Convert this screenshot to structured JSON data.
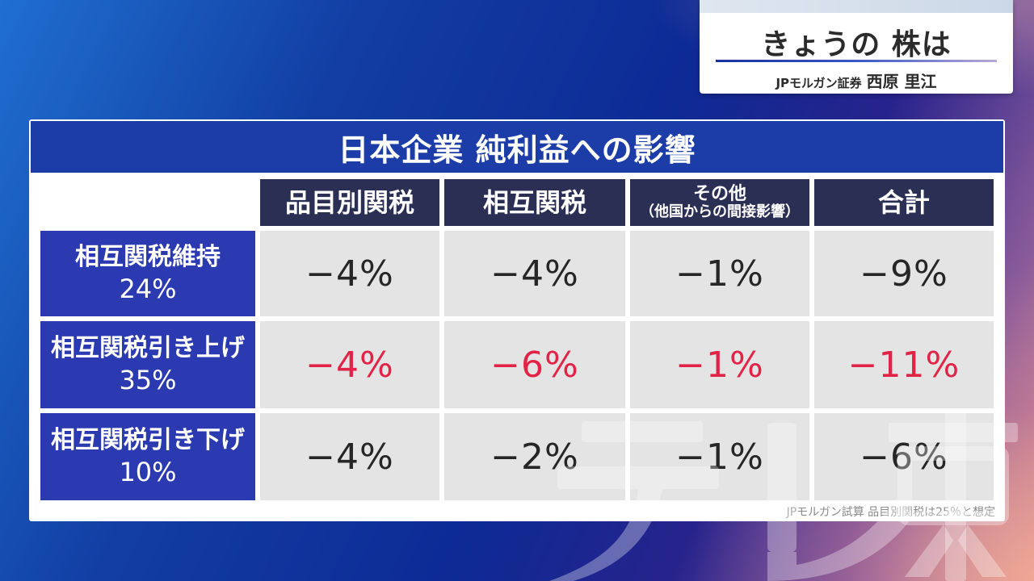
{
  "caption": {
    "title": "きょうの 株は",
    "firm": "JPモルガン証券",
    "person": "西原 里江"
  },
  "table": {
    "title": "日本企業 純利益への影響",
    "columns": [
      {
        "label": "品目別関税"
      },
      {
        "label": "相互関税"
      },
      {
        "label": "その他",
        "sublabel": "（他国からの間接影響）"
      },
      {
        "label": "合計"
      }
    ],
    "rows": [
      {
        "label": "相互関税維持",
        "rate": "24%",
        "values": [
          "−4%",
          "−4%",
          "−1%",
          "−9%"
        ],
        "highlight": false
      },
      {
        "label": "相互関税引き上げ",
        "rate": "35%",
        "values": [
          "−4%",
          "−6%",
          "−1%",
          "−11%"
        ],
        "highlight": true
      },
      {
        "label": "相互関税引き下げ",
        "rate": "10%",
        "values": [
          "−4%",
          "−2%",
          "−1%",
          "−6%"
        ],
        "highlight": false
      }
    ],
    "footnote": "JPモルガン試算  品目別関税は25％と想定"
  },
  "colors": {
    "title_bar": "#1c3da8",
    "column_header": "#2b2f54",
    "row_header": "#2b3ab0",
    "cell_bg": "#e4e4e4",
    "highlight_text": "#e02346"
  },
  "watermark": {
    "text": "テレ東"
  }
}
